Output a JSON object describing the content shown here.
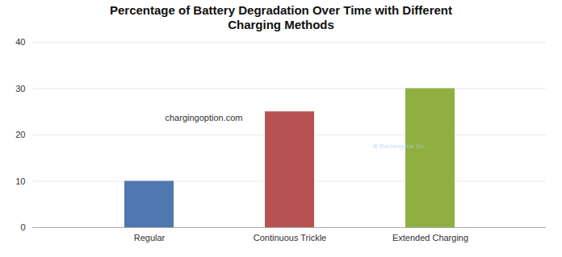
{
  "chart_data": {
    "type": "bar",
    "title": "Percentage of Battery Degradation Over Time with Different\nCharging Methods",
    "categories": [
      "Regular",
      "Continuous Trickle",
      "Extended Charging"
    ],
    "values": [
      10,
      25,
      30
    ],
    "colors": [
      "#4f78b0",
      "#b85252",
      "#8fb040"
    ],
    "ylim": [
      0,
      40
    ],
    "yticks": [
      0,
      10,
      20,
      30,
      40
    ],
    "grid": true,
    "annotations": [
      "chargingoption.com",
      "⊞ Rectangular Sn..."
    ]
  }
}
